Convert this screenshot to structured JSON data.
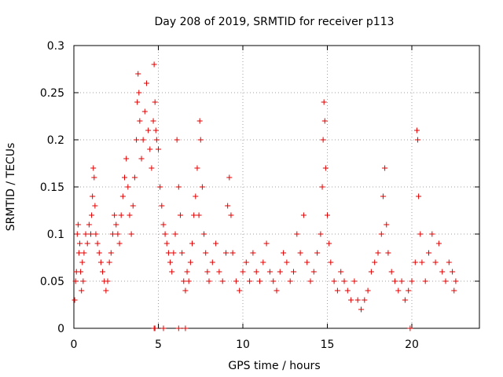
{
  "chart_data": {
    "type": "scatter",
    "title": "Day 208 of 2019, SRMTID for receiver p113",
    "xlabel": "GPS time / hours",
    "ylabel": "SRMTID / TECUs",
    "xlim": [
      0,
      24
    ],
    "ylim": [
      0,
      0.3
    ],
    "xticks": [
      0,
      5,
      10,
      15,
      20
    ],
    "xtick_labels": [
      "0",
      "5",
      "10",
      "15",
      "20"
    ],
    "yticks": [
      0,
      0.05,
      0.1,
      0.15,
      0.2,
      0.25,
      0.3
    ],
    "ytick_labels": [
      "0",
      "0.05",
      "0.1",
      "0.15",
      "0.2",
      "0.25",
      "0.3"
    ],
    "grid": true,
    "marker": "+",
    "color": "#e00000",
    "series": [
      {
        "name": "SRMTID p113",
        "points": [
          [
            0.05,
            0.03
          ],
          [
            0.1,
            0.05
          ],
          [
            0.15,
            0.06
          ],
          [
            0.2,
            0.1
          ],
          [
            0.25,
            0.11
          ],
          [
            0.3,
            0.08
          ],
          [
            0.35,
            0.09
          ],
          [
            0.4,
            0.06
          ],
          [
            0.45,
            0.04
          ],
          [
            0.5,
            0.07
          ],
          [
            0.55,
            0.05
          ],
          [
            0.6,
            0.08
          ],
          [
            0.7,
            0.1
          ],
          [
            0.8,
            0.09
          ],
          [
            0.9,
            0.11
          ],
          [
            1.0,
            0.1
          ],
          [
            1.05,
            0.12
          ],
          [
            1.1,
            0.14
          ],
          [
            1.15,
            0.17
          ],
          [
            1.2,
            0.16
          ],
          [
            1.25,
            0.13
          ],
          [
            1.3,
            0.1
          ],
          [
            1.4,
            0.09
          ],
          [
            1.5,
            0.08
          ],
          [
            1.6,
            0.07
          ],
          [
            1.7,
            0.06
          ],
          [
            1.8,
            0.05
          ],
          [
            1.9,
            0.04
          ],
          [
            2.0,
            0.05
          ],
          [
            2.1,
            0.07
          ],
          [
            2.2,
            0.08
          ],
          [
            2.3,
            0.1
          ],
          [
            2.4,
            0.12
          ],
          [
            2.5,
            0.11
          ],
          [
            2.6,
            0.1
          ],
          [
            2.7,
            0.09
          ],
          [
            2.8,
            0.12
          ],
          [
            2.9,
            0.14
          ],
          [
            3.0,
            0.16
          ],
          [
            3.1,
            0.18
          ],
          [
            3.2,
            0.15
          ],
          [
            3.3,
            0.12
          ],
          [
            3.4,
            0.1
          ],
          [
            3.5,
            0.13
          ],
          [
            3.6,
            0.16
          ],
          [
            3.7,
            0.2
          ],
          [
            3.75,
            0.24
          ],
          [
            3.8,
            0.27
          ],
          [
            3.85,
            0.25
          ],
          [
            3.9,
            0.22
          ],
          [
            4.0,
            0.18
          ],
          [
            4.1,
            0.2
          ],
          [
            4.2,
            0.23
          ],
          [
            4.3,
            0.26
          ],
          [
            4.4,
            0.21
          ],
          [
            4.5,
            0.19
          ],
          [
            4.6,
            0.17
          ],
          [
            4.7,
            0.22
          ],
          [
            4.75,
            0.28
          ],
          [
            4.8,
            0.24
          ],
          [
            4.85,
            0.21
          ],
          [
            4.9,
            0.2
          ],
          [
            5.0,
            0.19
          ],
          [
            5.1,
            0.15
          ],
          [
            5.2,
            0.13
          ],
          [
            5.3,
            0.11
          ],
          [
            5.4,
            0.1
          ],
          [
            5.5,
            0.09
          ],
          [
            5.6,
            0.08
          ],
          [
            5.7,
            0.07
          ],
          [
            5.8,
            0.06
          ],
          [
            5.9,
            0.08
          ],
          [
            6.0,
            0.1
          ],
          [
            6.1,
            0.2
          ],
          [
            6.2,
            0.15
          ],
          [
            6.3,
            0.12
          ],
          [
            6.4,
            0.08
          ],
          [
            6.5,
            0.05
          ],
          [
            6.6,
            0.04
          ],
          [
            6.7,
            0.06
          ],
          [
            6.8,
            0.05
          ],
          [
            6.9,
            0.07
          ],
          [
            7.0,
            0.09
          ],
          [
            7.1,
            0.12
          ],
          [
            7.2,
            0.14
          ],
          [
            7.3,
            0.17
          ],
          [
            7.4,
            0.12
          ],
          [
            7.45,
            0.22
          ],
          [
            7.5,
            0.2
          ],
          [
            7.6,
            0.15
          ],
          [
            7.7,
            0.1
          ],
          [
            7.8,
            0.08
          ],
          [
            7.9,
            0.06
          ],
          [
            8.0,
            0.05
          ],
          [
            8.2,
            0.07
          ],
          [
            8.4,
            0.09
          ],
          [
            8.6,
            0.06
          ],
          [
            8.8,
            0.05
          ],
          [
            9.0,
            0.08
          ],
          [
            9.1,
            0.13
          ],
          [
            9.2,
            0.16
          ],
          [
            9.3,
            0.12
          ],
          [
            9.4,
            0.08
          ],
          [
            9.6,
            0.05
          ],
          [
            9.8,
            0.04
          ],
          [
            10.0,
            0.06
          ],
          [
            10.2,
            0.07
          ],
          [
            10.4,
            0.05
          ],
          [
            10.6,
            0.08
          ],
          [
            10.8,
            0.06
          ],
          [
            11.0,
            0.05
          ],
          [
            11.2,
            0.07
          ],
          [
            11.4,
            0.09
          ],
          [
            11.6,
            0.06
          ],
          [
            11.8,
            0.05
          ],
          [
            12.0,
            0.04
          ],
          [
            12.2,
            0.06
          ],
          [
            12.4,
            0.08
          ],
          [
            12.6,
            0.07
          ],
          [
            12.8,
            0.05
          ],
          [
            13.0,
            0.06
          ],
          [
            13.2,
            0.1
          ],
          [
            13.4,
            0.08
          ],
          [
            13.6,
            0.12
          ],
          [
            13.8,
            0.07
          ],
          [
            14.0,
            0.05
          ],
          [
            14.2,
            0.06
          ],
          [
            14.4,
            0.08
          ],
          [
            14.6,
            0.1
          ],
          [
            14.7,
            0.15
          ],
          [
            14.75,
            0.2
          ],
          [
            14.8,
            0.24
          ],
          [
            14.85,
            0.22
          ],
          [
            14.9,
            0.17
          ],
          [
            15.0,
            0.12
          ],
          [
            15.1,
            0.09
          ],
          [
            15.2,
            0.07
          ],
          [
            15.4,
            0.05
          ],
          [
            15.6,
            0.04
          ],
          [
            15.8,
            0.06
          ],
          [
            16.0,
            0.05
          ],
          [
            16.2,
            0.04
          ],
          [
            16.4,
            0.03
          ],
          [
            16.6,
            0.05
          ],
          [
            16.8,
            0.03
          ],
          [
            17.0,
            0.02
          ],
          [
            17.2,
            0.03
          ],
          [
            17.4,
            0.04
          ],
          [
            17.6,
            0.06
          ],
          [
            17.8,
            0.07
          ],
          [
            18.0,
            0.08
          ],
          [
            18.2,
            0.1
          ],
          [
            18.3,
            0.14
          ],
          [
            18.4,
            0.17
          ],
          [
            18.5,
            0.11
          ],
          [
            18.6,
            0.08
          ],
          [
            18.8,
            0.06
          ],
          [
            19.0,
            0.05
          ],
          [
            19.2,
            0.04
          ],
          [
            19.4,
            0.05
          ],
          [
            19.6,
            0.03
          ],
          [
            19.8,
            0.04
          ],
          [
            20.0,
            0.05
          ],
          [
            20.2,
            0.07
          ],
          [
            20.3,
            0.21
          ],
          [
            20.35,
            0.2
          ],
          [
            20.4,
            0.14
          ],
          [
            20.5,
            0.1
          ],
          [
            20.6,
            0.07
          ],
          [
            20.8,
            0.05
          ],
          [
            21.0,
            0.08
          ],
          [
            21.2,
            0.1
          ],
          [
            21.4,
            0.07
          ],
          [
            21.6,
            0.09
          ],
          [
            21.8,
            0.06
          ],
          [
            22.0,
            0.05
          ],
          [
            22.2,
            0.07
          ],
          [
            22.4,
            0.06
          ],
          [
            22.5,
            0.04
          ],
          [
            22.6,
            0.05
          ],
          [
            4.75,
            0.0
          ],
          [
            4.8,
            0.0
          ],
          [
            5.3,
            0.0
          ],
          [
            6.2,
            0.0
          ],
          [
            6.6,
            0.0
          ],
          [
            19.9,
            0.0
          ]
        ]
      }
    ]
  }
}
